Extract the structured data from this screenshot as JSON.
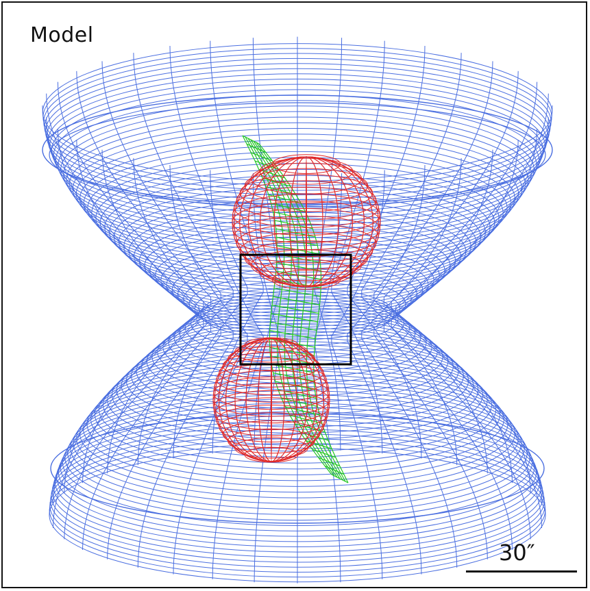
{
  "panel": {
    "label": "Model",
    "scale_text": "30″"
  },
  "colors": {
    "outer_shell": "#4a6ee0",
    "inner_lobes": "#e02828",
    "jet": "#22c622",
    "box": "#000000"
  }
}
